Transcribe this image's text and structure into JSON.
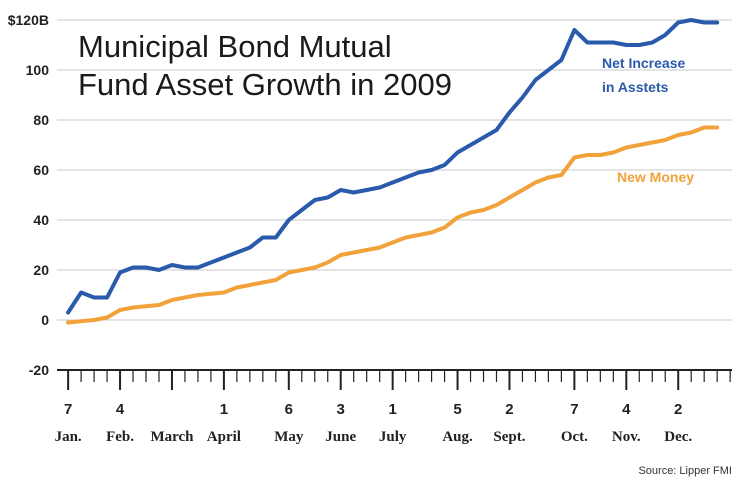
{
  "chart_data": {
    "type": "line",
    "title": "Municipal Bond Mutual Fund Asset Growth in 2009",
    "title_lines": [
      "Municipal Bond Mutual",
      "Fund Asset Growth in 2009"
    ],
    "source": "Source: Lipper FMI",
    "ylim": [
      -20,
      120
    ],
    "yticks": [
      {
        "value": 120,
        "label": "$120B"
      },
      {
        "value": 100,
        "label": "100"
      },
      {
        "value": 80,
        "label": "80"
      },
      {
        "value": 60,
        "label": "60"
      },
      {
        "value": 40,
        "label": "40"
      },
      {
        "value": 20,
        "label": "20"
      },
      {
        "value": 0,
        "label": "0"
      },
      {
        "value": -20,
        "label": "-20"
      }
    ],
    "grid": true,
    "x_range": [
      "2009-01-01",
      "2009-12-31"
    ],
    "xticks": [
      {
        "date": "2009-01-07",
        "day": "7",
        "month": "Jan."
      },
      {
        "date": "2009-02-04",
        "day": "4",
        "month": "Feb."
      },
      {
        "date": "2009-03-04",
        "day": "",
        "month": "March"
      },
      {
        "date": "2009-04-01",
        "day": "1",
        "month": "April"
      },
      {
        "date": "2009-05-06",
        "day": "6",
        "month": "May"
      },
      {
        "date": "2009-06-03",
        "day": "3",
        "month": "June"
      },
      {
        "date": "2009-07-01",
        "day": "1",
        "month": "July"
      },
      {
        "date": "2009-08-05",
        "day": "5",
        "month": "Aug."
      },
      {
        "date": "2009-09-02",
        "day": "2",
        "month": "Sept."
      },
      {
        "date": "2009-10-07",
        "day": "7",
        "month": "Oct."
      },
      {
        "date": "2009-11-04",
        "day": "4",
        "month": "Nov."
      },
      {
        "date": "2009-12-02",
        "day": "2",
        "month": "Dec."
      }
    ],
    "series": [
      {
        "name": "Net Increase in Asstets",
        "label_lines": [
          "Net Increase",
          "in Asstets"
        ],
        "color": "#2a5aab",
        "x": [
          "2009-01-07",
          "2009-01-14",
          "2009-01-21",
          "2009-01-28",
          "2009-02-04",
          "2009-02-11",
          "2009-02-18",
          "2009-02-25",
          "2009-03-04",
          "2009-03-11",
          "2009-03-18",
          "2009-03-25",
          "2009-04-01",
          "2009-04-08",
          "2009-04-15",
          "2009-04-22",
          "2009-04-29",
          "2009-05-06",
          "2009-05-13",
          "2009-05-20",
          "2009-05-27",
          "2009-06-03",
          "2009-06-10",
          "2009-06-17",
          "2009-06-24",
          "2009-07-01",
          "2009-07-08",
          "2009-07-15",
          "2009-07-22",
          "2009-07-29",
          "2009-08-05",
          "2009-08-12",
          "2009-08-19",
          "2009-08-26",
          "2009-09-02",
          "2009-09-09",
          "2009-09-16",
          "2009-09-23",
          "2009-09-30",
          "2009-10-07",
          "2009-10-14",
          "2009-10-21",
          "2009-10-28",
          "2009-11-04",
          "2009-11-11",
          "2009-11-18",
          "2009-11-25",
          "2009-12-02",
          "2009-12-09",
          "2009-12-16",
          "2009-12-23"
        ],
        "values": [
          3,
          11,
          9,
          9,
          19,
          21,
          21,
          20,
          22,
          21,
          21,
          23,
          25,
          27,
          29,
          33,
          33,
          40,
          44,
          48,
          49,
          52,
          51,
          52,
          53,
          55,
          57,
          59,
          60,
          62,
          67,
          70,
          73,
          76,
          83,
          89,
          96,
          100,
          104,
          116,
          111,
          111,
          111,
          110,
          110,
          111,
          114,
          119,
          120,
          119,
          119
        ]
      },
      {
        "name": "New Money",
        "label_lines": [
          "New Money"
        ],
        "color": "#f2a23a",
        "x": [
          "2009-01-07",
          "2009-01-14",
          "2009-01-21",
          "2009-01-28",
          "2009-02-04",
          "2009-02-11",
          "2009-02-18",
          "2009-02-25",
          "2009-03-04",
          "2009-03-11",
          "2009-03-18",
          "2009-03-25",
          "2009-04-01",
          "2009-04-08",
          "2009-04-15",
          "2009-04-22",
          "2009-04-29",
          "2009-05-06",
          "2009-05-13",
          "2009-05-20",
          "2009-05-27",
          "2009-06-03",
          "2009-06-10",
          "2009-06-17",
          "2009-06-24",
          "2009-07-01",
          "2009-07-08",
          "2009-07-15",
          "2009-07-22",
          "2009-07-29",
          "2009-08-05",
          "2009-08-12",
          "2009-08-19",
          "2009-08-26",
          "2009-09-02",
          "2009-09-09",
          "2009-09-16",
          "2009-09-23",
          "2009-09-30",
          "2009-10-07",
          "2009-10-14",
          "2009-10-21",
          "2009-10-28",
          "2009-11-04",
          "2009-11-11",
          "2009-11-18",
          "2009-11-25",
          "2009-12-02",
          "2009-12-09",
          "2009-12-16",
          "2009-12-23"
        ],
        "values": [
          -1,
          -0.5,
          0,
          1,
          4,
          5,
          5.5,
          6,
          8,
          9,
          10,
          10.5,
          11,
          13,
          14,
          15,
          16,
          19,
          20,
          21,
          23,
          26,
          27,
          28,
          29,
          31,
          33,
          34,
          35,
          37,
          41,
          43,
          44,
          46,
          49,
          52,
          55,
          57,
          58,
          65,
          66,
          66,
          67,
          69,
          70,
          71,
          72,
          74,
          75,
          77,
          77
        ]
      }
    ]
  }
}
